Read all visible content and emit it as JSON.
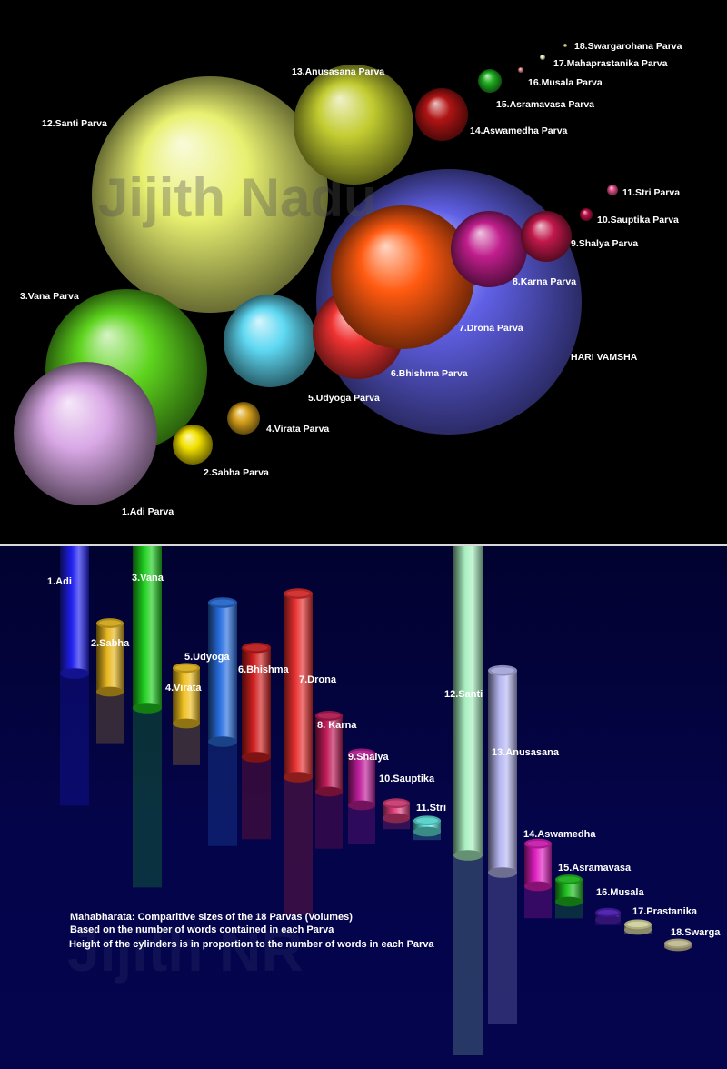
{
  "chart_data": [
    {
      "type": "bubble",
      "watermark": "Jijith Nadu",
      "labels": [
        "1.Adi Parva",
        "2.Sabha Parva",
        "3.Vana Parva",
        "4.Virata Parva",
        "5.Udyoga Parva",
        "6.Bhishma Parva",
        "7.Drona Parva",
        "8.Karna Parva",
        "9.Shalya Parva",
        "10.Sauptika Parva",
        "11.Stri Parva",
        "12.Santi Parva",
        "13.Anusasana Parva",
        "14.Aswamedha Parva",
        "15.Asramavasa Parva",
        "16.Musala Parva",
        "17.Mahaprastanika Parva",
        "18.Swargarohana Parva",
        "HARI VAMSHA"
      ],
      "colors": [
        "#d9a8e6",
        "#f2e000",
        "#5ed41e",
        "#d8a21c",
        "#5ed8f2",
        "#f03232",
        "#ff5a10",
        "#c01e8c",
        "#c0184a",
        "#c01048",
        "#e0508a",
        "#e8f070",
        "#c2cc30",
        "#b01414",
        "#20b020",
        "#e08080",
        "#f0f0c0",
        "#e8d880",
        "#6060e6"
      ]
    },
    {
      "type": "bar3d",
      "watermark": "Jijith NR",
      "categories": [
        "1.Adi",
        "2.Sabha",
        "3.Vana",
        "4.Virata",
        "5.Udyoga",
        "6.Bhishma",
        "7.Drona",
        "8. Karna",
        "9.Shalya",
        "10.Sauptika",
        "11.Stri",
        "12.Santi",
        "13.Anusasana",
        "14.Aswamedha",
        "15.Asramavasa",
        "16.Musala",
        "17.Prastanika",
        "18.Swarga"
      ],
      "values": [
        95,
        37,
        129,
        30,
        75,
        59,
        99,
        41,
        28,
        8,
        6,
        175,
        109,
        23,
        12,
        4,
        3,
        1
      ],
      "colors": [
        "#2020f0",
        "#e8b820",
        "#20d020",
        "#f0c020",
        "#2a70e0",
        "#d02020",
        "#e83030",
        "#c01c58",
        "#c0209c",
        "#e0407e",
        "#60e8e0",
        "#a8f0c0",
        "#b8b8f2",
        "#e020c0",
        "#20c020",
        "#5020c0",
        "#e8e8b0",
        "#d8d0a0"
      ],
      "caption": [
        "Mahabharata: Comparitive sizes of the 18 Parvas (Volumes)",
        "Based on the number of words contained in each Parva",
        "Height of the cylinders is in proportion to the number of words in each Parva"
      ]
    }
  ]
}
